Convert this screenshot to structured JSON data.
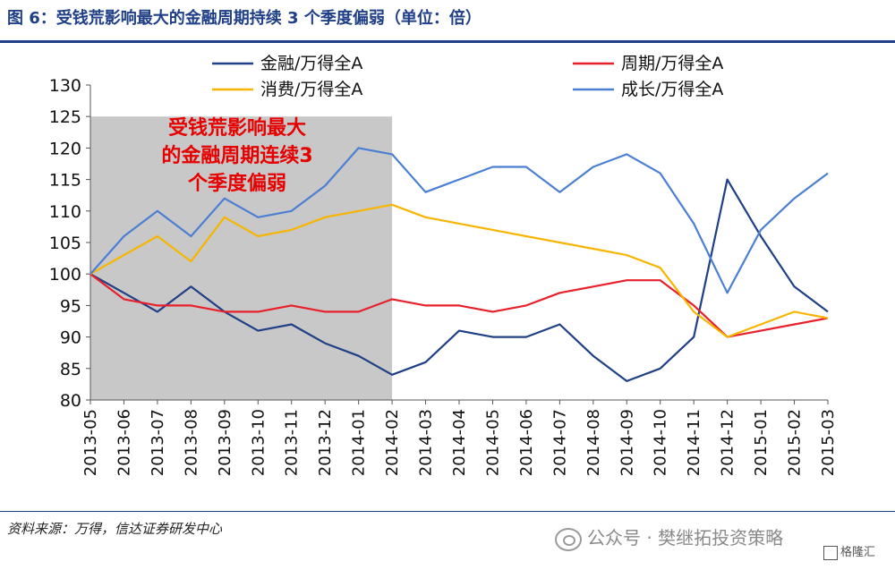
{
  "header": {
    "title": "图 6：受钱荒影响最大的金融周期持续 3 个季度偏弱（单位：倍）"
  },
  "footer": {
    "source": "资料来源：万得，信达证券研发中心",
    "watermark": "公众号 · 樊继拓投资策略",
    "corner_tag": "格隆汇"
  },
  "colors": {
    "brand": "#1f3f86",
    "shade": "#c8c8c8"
  },
  "chart_data": {
    "type": "line",
    "title": "",
    "xlabel": "",
    "ylabel": "",
    "ylim": [
      80,
      130
    ],
    "yticks": [
      80,
      85,
      90,
      95,
      100,
      105,
      110,
      115,
      120,
      125,
      130
    ],
    "grid": false,
    "legend_position": "top",
    "categories": [
      "2013-05",
      "2013-06",
      "2013-07",
      "2013-08",
      "2013-09",
      "2013-10",
      "2013-11",
      "2013-12",
      "2014-01",
      "2014-02",
      "2014-03",
      "2014-04",
      "2014-05",
      "2014-06",
      "2014-07",
      "2014-08",
      "2014-09",
      "2014-10",
      "2014-11",
      "2014-12",
      "2015-01",
      "2015-02",
      "2015-03"
    ],
    "shaded_region": {
      "from": "2013-05",
      "to": "2014-02",
      "ymax": 125
    },
    "annotation": {
      "lines": [
        "受钱荒影响最大",
        "的金融周期连续3",
        "个季度偏弱"
      ]
    },
    "series": [
      {
        "name": "金融/万得全A",
        "color": "#1f3f86",
        "x": [
          "2013-05",
          "2013-06",
          "2013-07",
          "2013-08",
          "2013-09",
          "2013-10",
          "2013-11",
          "2013-12",
          "2014-01",
          "2014-02",
          "2014-03",
          "2014-04",
          "2014-05",
          "2014-06",
          "2014-07",
          "2014-08",
          "2014-09",
          "2014-10",
          "2014-11",
          "2014-12",
          "2015-01",
          "2015-02",
          "2015-03"
        ],
        "values": [
          100,
          97,
          94,
          98,
          94,
          91,
          92,
          89,
          87,
          84,
          86,
          91,
          90,
          90,
          92,
          87,
          83,
          85,
          90,
          115,
          106,
          98,
          94
        ]
      },
      {
        "name": "周期/万得全A",
        "color": "#e8202a",
        "x": [
          "2013-05",
          "2013-06",
          "2013-07",
          "2013-08",
          "2013-09",
          "2013-10",
          "2013-11",
          "2013-12",
          "2014-01",
          "2014-02",
          "2014-03",
          "2014-04",
          "2014-05",
          "2014-06",
          "2014-07",
          "2014-08",
          "2014-09",
          "2014-10",
          "2014-11",
          "2014-12",
          "2015-01",
          "2015-02",
          "2015-03"
        ],
        "values": [
          100,
          96,
          95,
          95,
          94,
          94,
          95,
          94,
          94,
          96,
          95,
          95,
          94,
          95,
          97,
          98,
          99,
          99,
          95,
          90,
          91,
          92,
          93
        ]
      },
      {
        "name": "消费/万得全A",
        "color": "#f7b500",
        "x": [
          "2013-05",
          "2013-06",
          "2013-07",
          "2013-08",
          "2013-09",
          "2013-10",
          "2013-11",
          "2013-12",
          "2014-01",
          "2014-02",
          "2014-03",
          "2014-04",
          "2014-05",
          "2014-06",
          "2014-07",
          "2014-08",
          "2014-09",
          "2014-10",
          "2014-11",
          "2014-12",
          "2015-01",
          "2015-02",
          "2015-03"
        ],
        "values": [
          100,
          103,
          106,
          102,
          109,
          106,
          107,
          109,
          110,
          111,
          109,
          108,
          107,
          106,
          105,
          104,
          103,
          101,
          94,
          90,
          92,
          94,
          93
        ]
      },
      {
        "name": "成长/万得全A",
        "color": "#4a7fd4",
        "x": [
          "2013-05",
          "2013-06",
          "2013-07",
          "2013-08",
          "2013-09",
          "2013-10",
          "2013-11",
          "2013-12",
          "2014-01",
          "2014-02",
          "2014-03",
          "2014-04",
          "2014-05",
          "2014-06",
          "2014-07",
          "2014-08",
          "2014-09",
          "2014-10",
          "2014-11",
          "2014-12",
          "2015-01",
          "2015-02",
          "2015-03"
        ],
        "values": [
          100,
          106,
          110,
          106,
          112,
          109,
          110,
          114,
          120,
          119,
          113,
          115,
          117,
          117,
          113,
          117,
          119,
          116,
          108,
          97,
          107,
          112,
          116
        ]
      }
    ]
  }
}
